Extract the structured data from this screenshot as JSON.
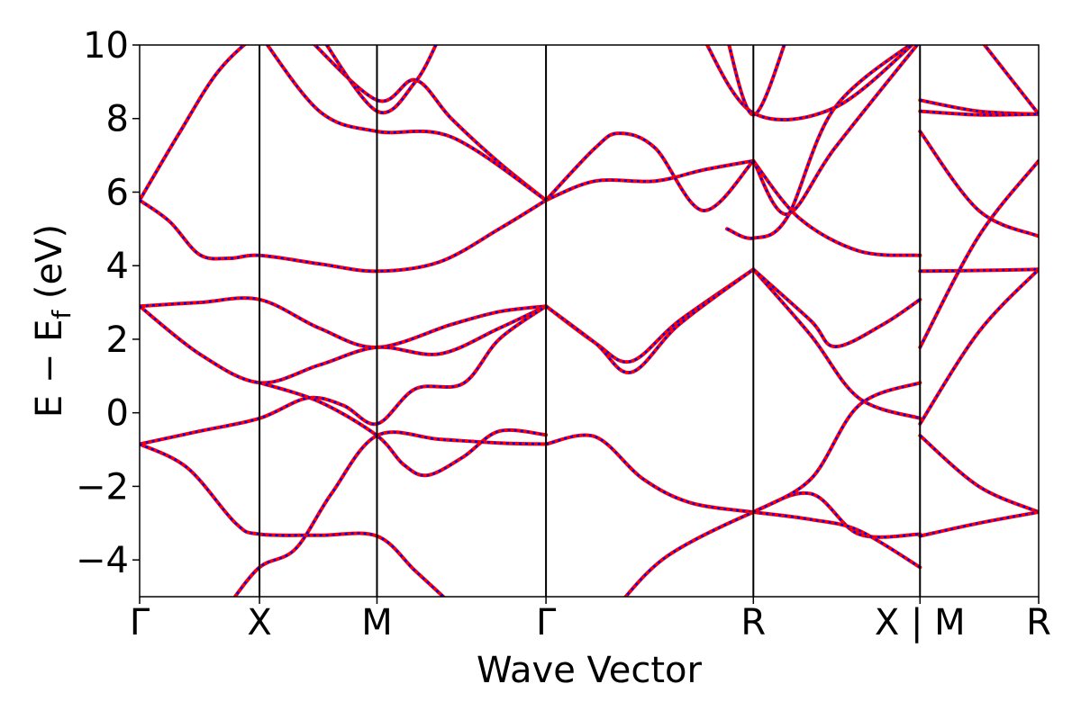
{
  "chart_data": {
    "type": "line",
    "title": "",
    "xlabel": "Wave Vector",
    "ylabel": "E − E_f (eV)",
    "ylabel_main": "E − E",
    "ylabel_sub": "f",
    "ylabel_unit": " (eV)",
    "ylim": [
      -5,
      10
    ],
    "yticks": [
      -4,
      -2,
      0,
      2,
      4,
      6,
      8,
      10
    ],
    "ytick_labels": [
      "−4",
      "−2",
      "0",
      "2",
      "4",
      "6",
      "8",
      "10"
    ],
    "xlim": [
      0,
      7.5
    ],
    "kpoints": [
      {
        "label": "Γ",
        "x": 0
      },
      {
        "label": "X",
        "x": 1.0
      },
      {
        "label": "M",
        "x": 1.98
      },
      {
        "label": "Γ",
        "x": 3.39
      },
      {
        "label": "R",
        "x": 5.12
      },
      {
        "label": "X | M",
        "x": 6.51
      },
      {
        "label": "R",
        "x": 7.5
      }
    ],
    "grid": false,
    "legend": "none",
    "colors": {
      "band_solid": "#ff0000",
      "band_dashed": "#0000ff",
      "kline": "#000000"
    },
    "series": [
      {
        "values": [
          [
            0,
            5.78
          ],
          [
            0.33,
            7.6
          ],
          [
            0.66,
            9.3
          ],
          [
            1.0,
            10.3
          ],
          [
            1.2,
            10.3
          ]
        ]
      },
      {
        "values": [
          [
            0,
            5.78
          ],
          [
            0.25,
            5.2
          ],
          [
            0.5,
            4.3
          ],
          [
            0.75,
            4.2
          ],
          [
            1.0,
            4.28
          ],
          [
            1.5,
            4.05
          ],
          [
            1.98,
            3.85
          ],
          [
            2.5,
            4.1
          ],
          [
            3.0,
            5.0
          ],
          [
            3.39,
            5.78
          ]
        ]
      },
      {
        "values": [
          [
            0,
            2.9
          ],
          [
            0.5,
            3.0
          ],
          [
            1.0,
            3.08
          ],
          [
            1.5,
            2.3
          ],
          [
            1.98,
            1.78
          ],
          [
            2.6,
            2.4
          ],
          [
            3.0,
            2.75
          ],
          [
            3.39,
            2.9
          ]
        ]
      },
      {
        "values": [
          [
            0,
            2.9
          ],
          [
            0.5,
            1.6
          ],
          [
            1.0,
            0.82
          ],
          [
            1.5,
            1.3
          ],
          [
            1.98,
            1.78
          ],
          [
            2.5,
            1.6
          ],
          [
            3.0,
            2.3
          ],
          [
            3.39,
            2.9
          ]
        ]
      },
      {
        "values": [
          [
            0,
            -0.85
          ],
          [
            0.5,
            -0.5
          ],
          [
            1.0,
            -0.15
          ],
          [
            1.4,
            0.4
          ],
          [
            1.7,
            0.2
          ],
          [
            1.98,
            -0.3
          ],
          [
            2.3,
            0.65
          ],
          [
            2.7,
            0.8
          ],
          [
            3.0,
            2.0
          ],
          [
            3.39,
            2.9
          ]
        ]
      },
      {
        "values": [
          [
            1.0,
            0.82
          ],
          [
            1.5,
            0.3
          ],
          [
            1.98,
            -0.62
          ],
          [
            2.2,
            -1.4
          ],
          [
            2.4,
            -1.7
          ],
          [
            2.7,
            -1.2
          ],
          [
            3.0,
            -0.5
          ],
          [
            3.39,
            -0.6
          ]
        ]
      },
      {
        "values": [
          [
            0,
            -0.85
          ],
          [
            0.4,
            -1.5
          ],
          [
            0.8,
            -3.0
          ],
          [
            1.0,
            -3.3
          ],
          [
            1.5,
            -3.33
          ],
          [
            1.98,
            -3.35
          ],
          [
            2.3,
            -4.3
          ],
          [
            2.6,
            -5.2
          ]
        ]
      },
      {
        "values": [
          [
            0.75,
            -5.2
          ],
          [
            1.0,
            -4.2
          ],
          [
            1.3,
            -3.7
          ],
          [
            1.6,
            -2.2
          ],
          [
            1.98,
            -0.62
          ],
          [
            2.5,
            -0.72
          ],
          [
            3.0,
            -0.82
          ],
          [
            3.39,
            -0.85
          ]
        ]
      },
      {
        "values": [
          [
            3.39,
            -0.85
          ],
          [
            3.8,
            -0.65
          ],
          [
            4.2,
            -1.8
          ],
          [
            4.6,
            -2.45
          ],
          [
            5.12,
            -2.7
          ]
        ]
      },
      {
        "values": [
          [
            3.39,
            2.9
          ],
          [
            3.8,
            1.9
          ],
          [
            4.1,
            1.4
          ],
          [
            4.5,
            2.5
          ],
          [
            5.12,
            3.9
          ]
        ]
      },
      {
        "values": [
          [
            3.39,
            2.9
          ],
          [
            3.8,
            1.9
          ],
          [
            4.1,
            1.1
          ],
          [
            4.5,
            2.4
          ],
          [
            5.12,
            3.9
          ]
        ]
      },
      {
        "values": [
          [
            3.39,
            5.78
          ],
          [
            3.8,
            6.3
          ],
          [
            4.3,
            6.3
          ],
          [
            4.7,
            6.6
          ],
          [
            5.12,
            6.85
          ]
        ]
      },
      {
        "values": [
          [
            3.39,
            5.78
          ],
          [
            3.8,
            7.2
          ],
          [
            4.0,
            7.6
          ],
          [
            4.3,
            7.2
          ],
          [
            4.7,
            5.5
          ],
          [
            5.12,
            6.85
          ]
        ]
      },
      {
        "values": [
          [
            4.0,
            -5.2
          ],
          [
            4.4,
            -3.9
          ],
          [
            5.12,
            -2.7
          ],
          [
            5.6,
            -2.2
          ],
          [
            6.0,
            -3.3
          ],
          [
            6.51,
            -3.3
          ]
        ]
      },
      {
        "values": [
          [
            5.12,
            -2.7
          ],
          [
            5.6,
            -2.9
          ],
          [
            6.0,
            -3.2
          ],
          [
            6.51,
            -4.2
          ]
        ]
      },
      {
        "values": [
          [
            5.12,
            -2.7
          ],
          [
            5.6,
            -1.8
          ],
          [
            6.0,
            0.2
          ],
          [
            6.51,
            0.82
          ]
        ]
      },
      {
        "values": [
          [
            5.12,
            3.9
          ],
          [
            5.6,
            2.1
          ],
          [
            6.0,
            0.4
          ],
          [
            6.51,
            -0.15
          ]
        ]
      },
      {
        "values": [
          [
            5.12,
            3.9
          ],
          [
            5.6,
            2.5
          ],
          [
            5.8,
            1.8
          ],
          [
            6.2,
            2.4
          ],
          [
            6.51,
            3.08
          ]
        ]
      },
      {
        "values": [
          [
            5.12,
            6.85
          ],
          [
            5.5,
            5.3
          ],
          [
            6.0,
            4.4
          ],
          [
            6.51,
            4.28
          ]
        ]
      },
      {
        "values": [
          [
            5.12,
            6.85
          ],
          [
            5.4,
            5.4
          ],
          [
            5.8,
            7.2
          ],
          [
            6.51,
            10.1
          ]
        ]
      },
      {
        "values": [
          [
            4.9,
            5.0
          ],
          [
            5.12,
            4.75
          ],
          [
            5.4,
            5.3
          ],
          [
            5.8,
            8.3
          ],
          [
            6.51,
            10.2
          ]
        ]
      },
      {
        "values": [
          [
            4.7,
            10.2
          ],
          [
            5.12,
            8.15
          ],
          [
            5.8,
            8.3
          ],
          [
            6.51,
            10.2
          ]
        ]
      },
      {
        "values": [
          [
            4.9,
            10.2
          ],
          [
            5.12,
            8.1
          ],
          [
            5.4,
            10.2
          ]
        ]
      },
      {
        "values": [
          [
            1.4,
            10.2
          ],
          [
            1.98,
            8.5
          ],
          [
            2.3,
            9.05
          ],
          [
            2.6,
            8.0
          ],
          [
            3.0,
            6.8
          ],
          [
            3.39,
            5.78
          ]
        ]
      },
      {
        "values": [
          [
            1.0,
            10.3
          ],
          [
            1.5,
            8.2
          ],
          [
            1.98,
            7.65
          ],
          [
            2.6,
            7.5
          ],
          [
            3.39,
            5.78
          ]
        ]
      },
      {
        "values": [
          [
            1.5,
            10.3
          ],
          [
            1.98,
            8.2
          ],
          [
            2.3,
            9.0
          ],
          [
            2.5,
            10.2
          ]
        ]
      },
      {
        "values": [
          [
            6.51,
            8.5
          ],
          [
            7.0,
            8.2
          ],
          [
            7.5,
            8.12
          ]
        ]
      },
      {
        "values": [
          [
            6.51,
            8.2
          ],
          [
            7.0,
            8.1
          ],
          [
            7.5,
            8.12
          ]
        ]
      },
      {
        "values": [
          [
            6.51,
            7.65
          ],
          [
            7.0,
            5.5
          ],
          [
            7.5,
            4.8
          ]
        ]
      },
      {
        "values": [
          [
            6.51,
            1.78
          ],
          [
            7.0,
            4.8
          ],
          [
            7.5,
            6.85
          ]
        ]
      },
      {
        "values": [
          [
            6.51,
            3.85
          ],
          [
            7.0,
            3.87
          ],
          [
            7.5,
            3.9
          ]
        ]
      },
      {
        "values": [
          [
            6.51,
            -0.3
          ],
          [
            7.0,
            2.2
          ],
          [
            7.5,
            3.9
          ]
        ]
      },
      {
        "values": [
          [
            6.51,
            -0.62
          ],
          [
            7.0,
            -2.0
          ],
          [
            7.5,
            -2.7
          ]
        ]
      },
      {
        "values": [
          [
            6.51,
            -3.35
          ],
          [
            7.0,
            -3.0
          ],
          [
            7.5,
            -2.7
          ]
        ]
      },
      {
        "values": [
          [
            7.0,
            10.2
          ],
          [
            7.5,
            8.12
          ]
        ]
      }
    ]
  }
}
